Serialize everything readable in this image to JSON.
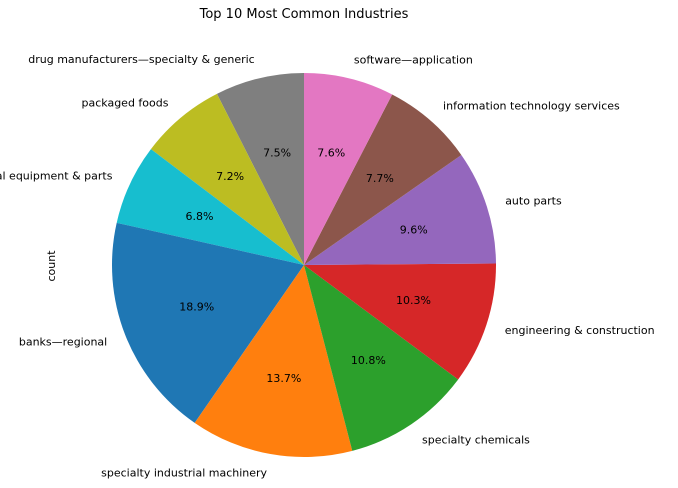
{
  "chart_data": {
    "type": "pie",
    "title": "Top 10 Most Common Industries",
    "ylabel": "count",
    "xlabel": "",
    "start_angle_deg": 90,
    "direction": "counterclockwise",
    "categories": [
      "drug manufacturers—specialty & generic",
      "packaged foods",
      "electrical equipment & parts",
      "banks—regional",
      "specialty industrial machinery",
      "specialty chemicals",
      "engineering & construction",
      "auto parts",
      "information technology services",
      "software—application"
    ],
    "values": [
      7.5,
      7.2,
      6.8,
      18.9,
      13.7,
      10.8,
      10.3,
      9.6,
      7.7,
      7.6
    ],
    "value_labels": [
      "7.5%",
      "7.2%",
      "6.8%",
      "18.9%",
      "13.7%",
      "10.8%",
      "10.3%",
      "9.6%",
      "7.7%",
      "7.6%"
    ],
    "colors": [
      "#7f7f7f",
      "#bcbd22",
      "#17becf",
      "#1f77b4",
      "#ff7f0e",
      "#2ca02c",
      "#d62728",
      "#9467bd",
      "#8c564b",
      "#e377c2"
    ],
    "legend": "none",
    "grid": false
  }
}
